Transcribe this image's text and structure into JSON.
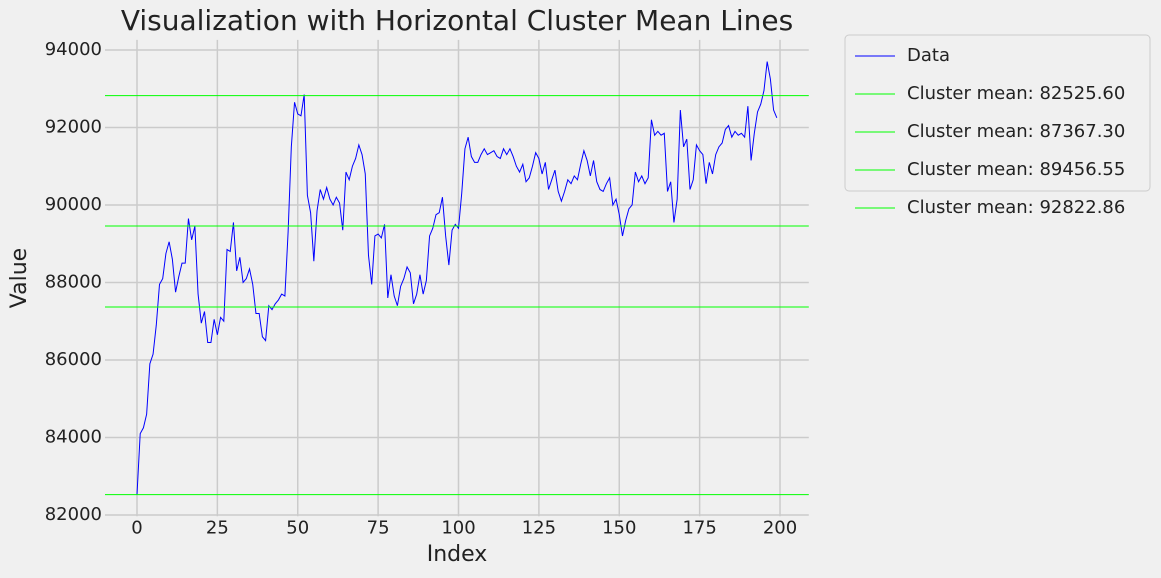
{
  "chart_data": {
    "type": "line",
    "title": "Visualization with Horizontal Cluster Mean Lines",
    "x_label": "Index",
    "y_label": "Value",
    "x": [
      0,
      1,
      2,
      3,
      4,
      5,
      6,
      7,
      8,
      9,
      10,
      11,
      12,
      13,
      14,
      15,
      16,
      17,
      18,
      19,
      20,
      21,
      22,
      23,
      24,
      25,
      26,
      27,
      28,
      29,
      30,
      31,
      32,
      33,
      34,
      35,
      36,
      37,
      38,
      39,
      40,
      41,
      42,
      43,
      44,
      45,
      46,
      47,
      48,
      49,
      50,
      51,
      52,
      53,
      54,
      55,
      56,
      57,
      58,
      59,
      60,
      61,
      62,
      63,
      64,
      65,
      66,
      67,
      68,
      69,
      70,
      71,
      72,
      73,
      74,
      75,
      76,
      77,
      78,
      79,
      80,
      81,
      82,
      83,
      84,
      85,
      86,
      87,
      88,
      89,
      90,
      91,
      92,
      93,
      94,
      95,
      96,
      97,
      98,
      99,
      100,
      101,
      102,
      103,
      104,
      105,
      106,
      107,
      108,
      109,
      110,
      111,
      112,
      113,
      114,
      115,
      116,
      117,
      118,
      119,
      120,
      121,
      122,
      123,
      124,
      125,
      126,
      127,
      128,
      129,
      130,
      131,
      132,
      133,
      134,
      135,
      136,
      137,
      138,
      139,
      140,
      141,
      142,
      143,
      144,
      145,
      146,
      147,
      148,
      149,
      150,
      151,
      152,
      153,
      154,
      155,
      156,
      157,
      158,
      159,
      160,
      161,
      162,
      163,
      164,
      165,
      166,
      167,
      168,
      169,
      170,
      171,
      172,
      173,
      174,
      175,
      176,
      177,
      178,
      179,
      180,
      181,
      182,
      183,
      184,
      185,
      186,
      187,
      188,
      189,
      190,
      191,
      192,
      193,
      194,
      195,
      196,
      197,
      198,
      199
    ],
    "series": [
      {
        "name": "Data",
        "color": "#0000ff",
        "values": [
          82525,
          84100,
          84250,
          84600,
          85900,
          86150,
          86900,
          87950,
          88100,
          88750,
          89050,
          88600,
          87750,
          88150,
          88500,
          88500,
          89650,
          89100,
          89450,
          87700,
          86950,
          87250,
          86450,
          86450,
          87050,
          86650,
          87100,
          87000,
          88850,
          88800,
          89550,
          88300,
          88650,
          88000,
          88100,
          88350,
          87950,
          87200,
          87200,
          86600,
          86500,
          87400,
          87300,
          87450,
          87550,
          87700,
          87650,
          89300,
          91500,
          92650,
          92350,
          92300,
          92850,
          90250,
          89800,
          88550,
          89850,
          90400,
          90150,
          90450,
          90150,
          90000,
          90200,
          90050,
          89350,
          90850,
          90650,
          91000,
          91200,
          91550,
          91300,
          90800,
          88700,
          87950,
          89200,
          89250,
          89150,
          89500,
          87600,
          88200,
          87650,
          87400,
          87900,
          88100,
          88400,
          88250,
          87450,
          87700,
          88200,
          87700,
          88050,
          89200,
          89400,
          89750,
          89800,
          90200,
          89200,
          88450,
          89350,
          89500,
          89400,
          90300,
          91450,
          91750,
          91250,
          91100,
          91100,
          91300,
          91450,
          91300,
          91350,
          91400,
          91250,
          91200,
          91450,
          91300,
          91450,
          91250,
          91000,
          90850,
          91050,
          90600,
          90700,
          91000,
          91350,
          91200,
          90800,
          91100,
          90400,
          90650,
          90900,
          90350,
          90100,
          90350,
          90650,
          90550,
          90750,
          90650,
          91050,
          91400,
          91150,
          90750,
          91150,
          90600,
          90400,
          90350,
          90550,
          90700,
          90000,
          90150,
          89750,
          89200,
          89600,
          89900,
          90000,
          90850,
          90600,
          90750,
          90550,
          90700,
          92200,
          91800,
          91900,
          91800,
          91850,
          90350,
          90600,
          89550,
          90150,
          92450,
          91500,
          91700,
          90400,
          90650,
          91550,
          91400,
          91300,
          90550,
          91100,
          90800,
          91300,
          91500,
          91600,
          91950,
          92050,
          91750,
          91900,
          91800,
          91850,
          91750,
          92550,
          91150,
          91850,
          92400,
          92600,
          92950,
          93700,
          93250,
          92450,
          92250
        ]
      }
    ],
    "hlines": [
      {
        "name": "Cluster mean: 82525.60",
        "value": 82525.6,
        "color": "#00ff00"
      },
      {
        "name": "Cluster mean: 87367.30",
        "value": 87367.3,
        "color": "#00ff00"
      },
      {
        "name": "Cluster mean: 89456.55",
        "value": 89456.55,
        "color": "#00ff00"
      },
      {
        "name": "Cluster mean: 92822.86",
        "value": 92822.86,
        "color": "#00ff00"
      }
    ],
    "xlim": [
      -9.95,
      208.95
    ],
    "ylim": [
      81966,
      94260
    ],
    "xticks": [
      0,
      25,
      50,
      75,
      100,
      125,
      150,
      175,
      200
    ],
    "yticks": [
      82000,
      84000,
      86000,
      88000,
      90000,
      92000,
      94000
    ],
    "grid": true,
    "legend": "outside upper right"
  }
}
